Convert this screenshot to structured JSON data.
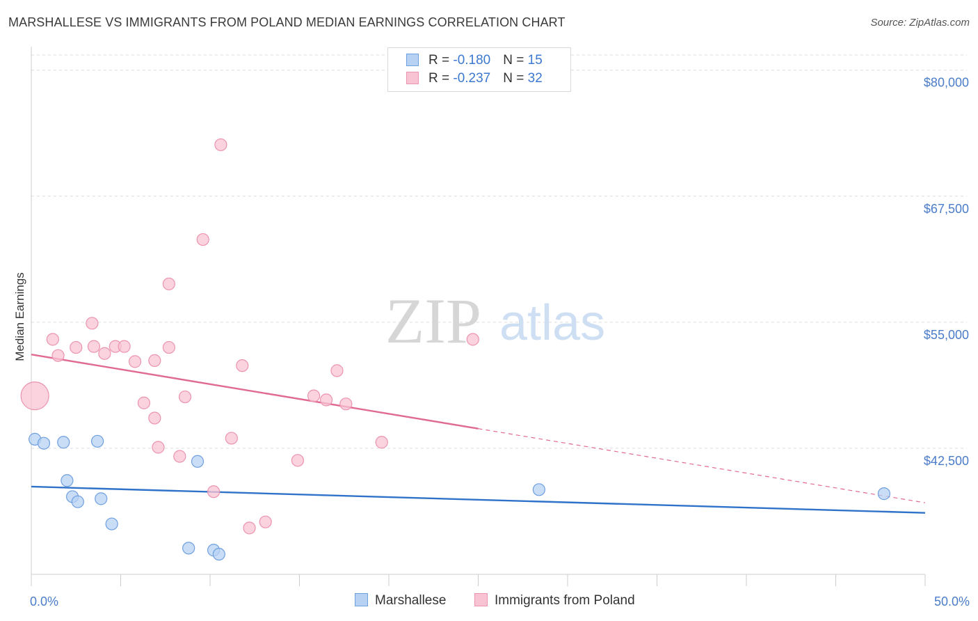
{
  "title": "MARSHALLESE VS IMMIGRANTS FROM POLAND MEDIAN EARNINGS CORRELATION CHART",
  "source": "Source: ZipAtlas.com",
  "watermark": {
    "zip": "ZIP",
    "atlas": "atlas"
  },
  "colors": {
    "blue_fill": "#b7d1f3",
    "blue_stroke": "#6e9fe0",
    "blue_line": "#2f72c9",
    "pink_fill": "#f8c4d4",
    "pink_stroke": "#ec93ae",
    "pink_line": "#e06a93",
    "grid": "#dcdcdc",
    "axis_text": "#4a7cc9"
  },
  "legend": {
    "rows": [
      {
        "r_label": "R = ",
        "r_value": "-0.180",
        "n_label": "N = ",
        "n_value": "15"
      },
      {
        "r_label": "R = ",
        "r_value": "-0.237",
        "n_label": "N = ",
        "n_value": "32"
      }
    ]
  },
  "bottom_legend": {
    "series1": "Marshallese",
    "series2": "Immigrants from Poland"
  },
  "chart_data": {
    "type": "scatter",
    "title": "MARSHALLESE VS IMMIGRANTS FROM POLAND MEDIAN EARNINGS CORRELATION CHART",
    "xlabel": "",
    "ylabel": "Median Earnings",
    "xlim": [
      0,
      50
    ],
    "ylim": [
      30000,
      81500
    ],
    "x_tick_labels": [
      {
        "value": 0,
        "label": "0.0%"
      },
      {
        "value": 50,
        "label": "50.0%"
      }
    ],
    "y_ticks": [
      {
        "value": 80000,
        "label": "$80,000"
      },
      {
        "value": 67500,
        "label": "$67,500"
      },
      {
        "value": 55000,
        "label": "$55,000"
      },
      {
        "value": 42500,
        "label": "$42,500"
      }
    ],
    "series": [
      {
        "name": "Marshallese",
        "R": -0.18,
        "N": 15,
        "points": [
          {
            "x": 0.2,
            "y": 43400
          },
          {
            "x": 0.7,
            "y": 43000
          },
          {
            "x": 1.8,
            "y": 43100
          },
          {
            "x": 3.7,
            "y": 43200
          },
          {
            "x": 2.0,
            "y": 39300
          },
          {
            "x": 2.3,
            "y": 37700
          },
          {
            "x": 2.6,
            "y": 37200
          },
          {
            "x": 3.9,
            "y": 37500
          },
          {
            "x": 4.5,
            "y": 35000
          },
          {
            "x": 9.3,
            "y": 41200
          },
          {
            "x": 8.8,
            "y": 32600
          },
          {
            "x": 10.2,
            "y": 32400
          },
          {
            "x": 10.5,
            "y": 32000
          },
          {
            "x": 28.4,
            "y": 38400
          },
          {
            "x": 47.7,
            "y": 38000
          }
        ],
        "trend": {
          "x0": 0,
          "y0": 38700,
          "x1": 50,
          "y1": 36100,
          "dashed_from": null
        }
      },
      {
        "name": "Immigrants from Poland",
        "R": -0.237,
        "N": 32,
        "points": [
          {
            "x": 0.2,
            "y": 47700,
            "size": "large"
          },
          {
            "x": 1.2,
            "y": 53300
          },
          {
            "x": 1.5,
            "y": 51700
          },
          {
            "x": 2.5,
            "y": 52500
          },
          {
            "x": 3.4,
            "y": 54900
          },
          {
            "x": 3.5,
            "y": 52600
          },
          {
            "x": 4.1,
            "y": 51900
          },
          {
            "x": 4.7,
            "y": 52600
          },
          {
            "x": 5.2,
            "y": 52600
          },
          {
            "x": 5.8,
            "y": 51100
          },
          {
            "x": 6.9,
            "y": 51200
          },
          {
            "x": 6.3,
            "y": 47000
          },
          {
            "x": 6.9,
            "y": 45500
          },
          {
            "x": 7.1,
            "y": 42600
          },
          {
            "x": 8.3,
            "y": 41700
          },
          {
            "x": 7.7,
            "y": 58800
          },
          {
            "x": 7.7,
            "y": 52500
          },
          {
            "x": 8.6,
            "y": 47600
          },
          {
            "x": 9.6,
            "y": 63200
          },
          {
            "x": 10.2,
            "y": 38200
          },
          {
            "x": 10.6,
            "y": 72600
          },
          {
            "x": 11.2,
            "y": 43500
          },
          {
            "x": 11.8,
            "y": 50700
          },
          {
            "x": 12.2,
            "y": 34600
          },
          {
            "x": 13.1,
            "y": 35200
          },
          {
            "x": 14.9,
            "y": 41300
          },
          {
            "x": 15.8,
            "y": 47700
          },
          {
            "x": 16.5,
            "y": 47300
          },
          {
            "x": 17.1,
            "y": 50200
          },
          {
            "x": 17.6,
            "y": 46900
          },
          {
            "x": 19.6,
            "y": 43100
          },
          {
            "x": 24.7,
            "y": 53300
          }
        ],
        "trend": {
          "x0": 0,
          "y0": 51800,
          "x1": 50,
          "y1": 37100,
          "dashed_from": 25
        }
      }
    ]
  }
}
